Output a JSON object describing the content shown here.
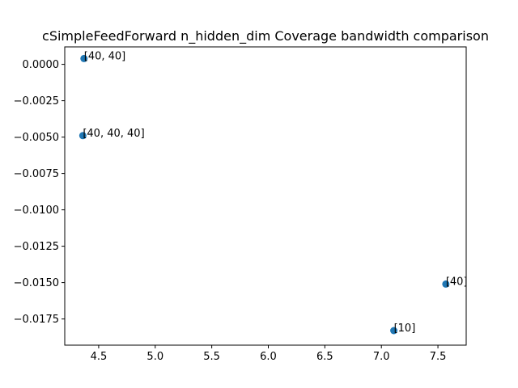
{
  "chart_data": {
    "type": "scatter",
    "title": "cSimpleFeedForward n_hidden_dim Coverage bandwidth comparison",
    "xlabel": "",
    "ylabel": "",
    "xlim": [
      4.2,
      7.75
    ],
    "ylim": [
      -0.0193,
      0.0012
    ],
    "xticks": [
      4.5,
      5.0,
      5.5,
      6.0,
      6.5,
      7.0,
      7.5
    ],
    "xtick_labels": [
      "4.5",
      "5.0",
      "5.5",
      "6.0",
      "6.5",
      "7.0",
      "7.5"
    ],
    "yticks": [
      0.0,
      -0.0025,
      -0.005,
      -0.0075,
      -0.01,
      -0.0125,
      -0.015,
      -0.0175
    ],
    "ytick_labels": [
      "0.0000",
      "−0.0025",
      "−0.0050",
      "−0.0075",
      "−0.0100",
      "−0.0125",
      "−0.0150",
      "−0.0175"
    ],
    "points": [
      {
        "x": 4.37,
        "y": 0.0004,
        "label": "[40, 40]"
      },
      {
        "x": 4.36,
        "y": -0.0049,
        "label": "[40, 40, 40]"
      },
      {
        "x": 7.57,
        "y": -0.0151,
        "label": "[40]"
      },
      {
        "x": 7.11,
        "y": -0.0183,
        "label": "[10]"
      }
    ],
    "marker_color": "#1f77b4",
    "grid": false,
    "legend": "none"
  }
}
